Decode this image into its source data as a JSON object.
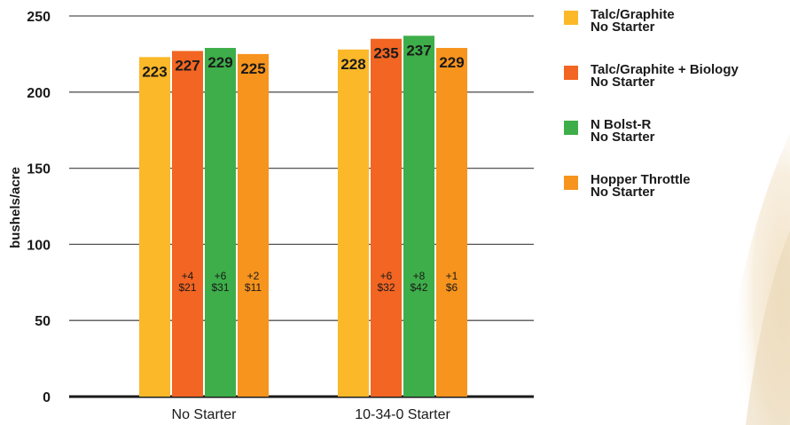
{
  "chart_data": {
    "type": "bar",
    "ylabel": "bushels/acre",
    "xlabel": "",
    "ylim": [
      0,
      250
    ],
    "yticks": [
      0,
      50,
      100,
      150,
      200,
      250
    ],
    "grid": true,
    "legend_position": "right",
    "categories": [
      "No Starter",
      "10-34-0 Starter"
    ],
    "series": [
      {
        "name": "Talc/Graphite",
        "name_line2": "No Starter",
        "color": "#FBB829",
        "values": [
          223,
          228
        ],
        "annotations": [
          [
            "",
            ""
          ],
          [
            "",
            ""
          ]
        ]
      },
      {
        "name": "Talc/Graphite + Biology",
        "name_line2": "No Starter",
        "color": "#F26522",
        "values": [
          227,
          235
        ],
        "annotations": [
          [
            "+4",
            "$21"
          ],
          [
            "+6",
            "$32"
          ]
        ]
      },
      {
        "name": "N Bolst-R",
        "name_line2": "No Starter",
        "color": "#3DAE49",
        "values": [
          229,
          237
        ],
        "annotations": [
          [
            "+6",
            "$31"
          ],
          [
            "+8",
            "$42"
          ]
        ]
      },
      {
        "name": "Hopper Throttle",
        "name_line2": "No Starter",
        "color": "#F7941D",
        "values": [
          225,
          229
        ],
        "annotations": [
          [
            "+2",
            "$11"
          ],
          [
            "+1",
            "$6"
          ]
        ]
      }
    ]
  }
}
